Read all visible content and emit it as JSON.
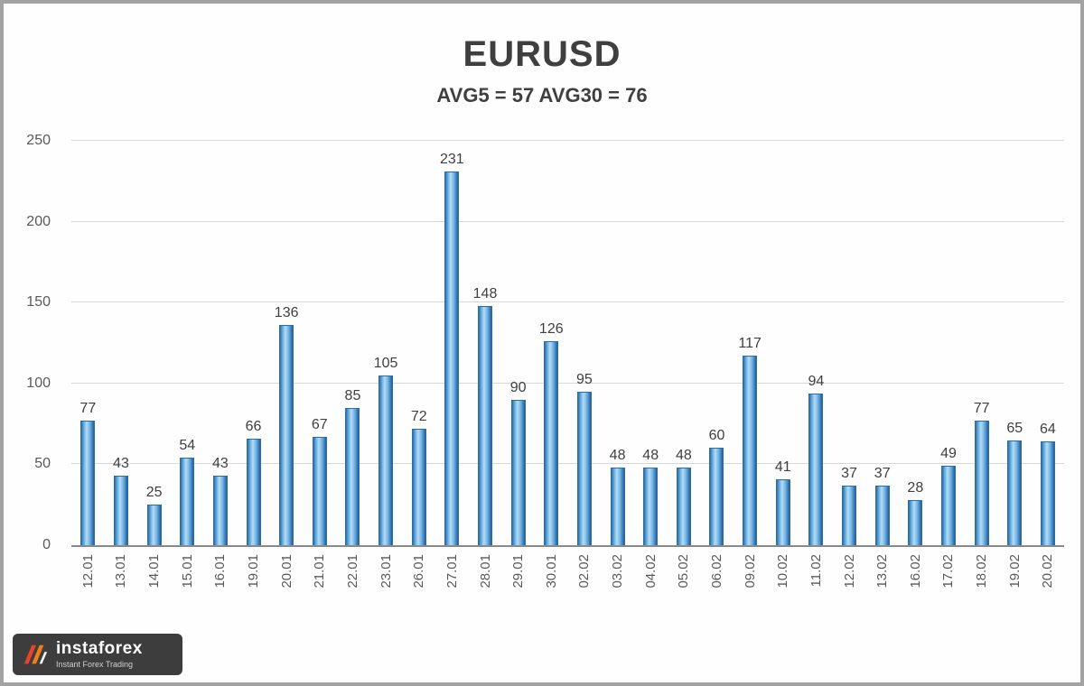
{
  "chart_data": {
    "type": "bar",
    "title": "EURUSD",
    "subtitle": "AVG5 = 57 AVG30 = 76",
    "categories": [
      "12.01",
      "13.01",
      "14.01",
      "15.01",
      "16.01",
      "19.01",
      "20.01",
      "21.01",
      "22.01",
      "23.01",
      "26.01",
      "27.01",
      "28.01",
      "29.01",
      "30.01",
      "02.02",
      "03.02",
      "04.02",
      "05.02",
      "06.02",
      "09.02",
      "10.02",
      "11.02",
      "12.02",
      "13.02",
      "16.02",
      "17.02",
      "18.02",
      "19.02",
      "20.02"
    ],
    "values": [
      77,
      43,
      25,
      54,
      43,
      66,
      136,
      67,
      85,
      105,
      72,
      231,
      148,
      90,
      126,
      95,
      48,
      48,
      48,
      60,
      117,
      41,
      94,
      37,
      37,
      28,
      49,
      77,
      65,
      64
    ],
    "ylim": [
      0,
      250
    ],
    "yticks": [
      0,
      50,
      100,
      150,
      200,
      250
    ],
    "grid": true,
    "legend": "none",
    "bar_color": "#5b9bd5"
  },
  "logo": {
    "brand": "instaforex",
    "tagline": "Instant Forex Trading",
    "accent_color": "#e8442c"
  }
}
